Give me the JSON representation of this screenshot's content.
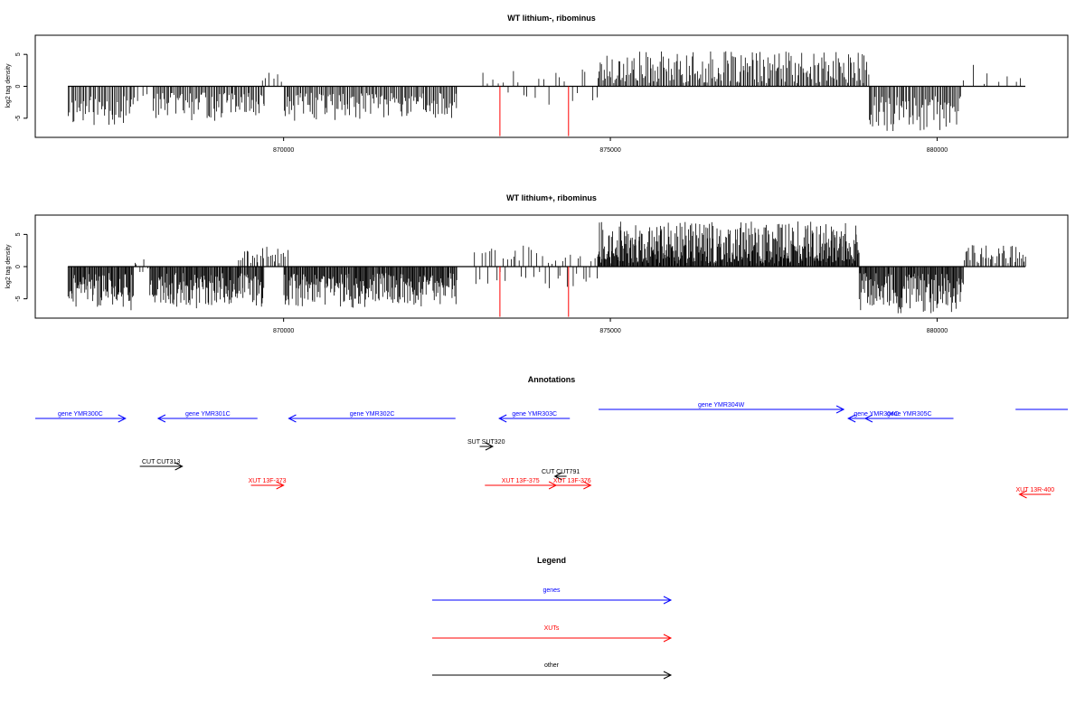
{
  "colors": {
    "gene": "#0000ff",
    "xut": "#ff0000",
    "other": "#000000",
    "marker": "#ff0000"
  },
  "chart_data": [
    {
      "type": "bar",
      "title": "WT lithium-, ribominus",
      "xlabel": "",
      "ylabel": "log2 tag density",
      "xlim": [
        866200,
        882000
      ],
      "ylim": [
        -8,
        8
      ],
      "xticks": [
        870000,
        875000,
        880000
      ],
      "xtick_labels": [
        "870000",
        "875000",
        "880000"
      ],
      "yticks": [
        -5,
        0,
        5
      ],
      "ytick_labels": [
        "-5",
        "0",
        "5"
      ],
      "baseline_x": [
        866700,
        881350
      ],
      "markers": [
        {
          "x": 873310,
          "y": -7.8
        },
        {
          "x": 874360,
          "y": -7.8
        }
      ],
      "segments": [
        {
          "x0": 866700,
          "x1": 867700,
          "step": 22,
          "min": -6.5,
          "max": -1.5,
          "seed": 11
        },
        {
          "x0": 867700,
          "x1": 867900,
          "step": 60,
          "min": -2.5,
          "max": -0.5,
          "seed": 12
        },
        {
          "x0": 868000,
          "x1": 869700,
          "step": 20,
          "min": -5.5,
          "max": -1.0,
          "seed": 13
        },
        {
          "x0": 869650,
          "x1": 869990,
          "step": 60,
          "min": 0.5,
          "max": 3.0,
          "seed": 14
        },
        {
          "x0": 870000,
          "x1": 872650,
          "step": 20,
          "min": -5.5,
          "max": -1.0,
          "seed": 15
        },
        {
          "x0": 873000,
          "x1": 874800,
          "step": 80,
          "min": -3.0,
          "max": 2.5,
          "seed": 16
        },
        {
          "x0": 874800,
          "x1": 878950,
          "step": 20,
          "min": 0.5,
          "max": 5.5,
          "seed": 17
        },
        {
          "x0": 878950,
          "x1": 880350,
          "step": 20,
          "min": -7.5,
          "max": -1.5,
          "seed": 18
        },
        {
          "x0": 880400,
          "x1": 881350,
          "step": 120,
          "min": 0.3,
          "max": 4.2,
          "seed": 19
        }
      ]
    },
    {
      "type": "bar",
      "title": "WT lithium+, ribominus",
      "xlabel": "",
      "ylabel": "log2 tag density",
      "xlim": [
        866200,
        882000
      ],
      "ylim": [
        -8,
        8
      ],
      "xticks": [
        870000,
        875000,
        880000
      ],
      "xtick_labels": [
        "870000",
        "875000",
        "880000"
      ],
      "yticks": [
        -5,
        0,
        5
      ],
      "ytick_labels": [
        "-5",
        "0",
        "5"
      ],
      "baseline_x": [
        866700,
        881350
      ],
      "markers": [
        {
          "x": 873310,
          "y": -7.8
        },
        {
          "x": 874360,
          "y": -7.8
        }
      ],
      "segments": [
        {
          "x0": 866700,
          "x1": 867700,
          "step": 12,
          "min": -6.8,
          "max": -1.0,
          "seed": 21
        },
        {
          "x0": 867700,
          "x1": 867950,
          "step": 40,
          "min": -1.0,
          "max": 1.0,
          "seed": 22
        },
        {
          "x0": 867950,
          "x1": 869700,
          "step": 12,
          "min": -6.5,
          "max": -1.0,
          "seed": 23
        },
        {
          "x0": 869300,
          "x1": 870050,
          "step": 30,
          "min": 0.5,
          "max": 3.5,
          "seed": 24
        },
        {
          "x0": 870000,
          "x1": 872650,
          "step": 12,
          "min": -6.5,
          "max": -1.0,
          "seed": 25
        },
        {
          "x0": 872900,
          "x1": 874800,
          "step": 40,
          "min": -3.5,
          "max": 3.0,
          "seed": 26
        },
        {
          "x0": 874800,
          "x1": 878800,
          "step": 10,
          "min": 0.5,
          "max": 7.0,
          "seed": 27
        },
        {
          "x0": 878800,
          "x1": 880400,
          "step": 12,
          "min": -7.5,
          "max": -1.0,
          "seed": 28
        },
        {
          "x0": 880400,
          "x1": 881350,
          "step": 25,
          "min": 0.5,
          "max": 3.5,
          "seed": 29
        }
      ]
    },
    {
      "type": "annotation-track",
      "title": "Annotations",
      "xlim": [
        866200,
        882000
      ],
      "features": [
        {
          "label": "gene YMR300C",
          "kind": "gene",
          "strand": "+",
          "x0": 866200,
          "x1": 867580,
          "row": 1
        },
        {
          "label": "gene YMR301C",
          "kind": "gene",
          "strand": "-",
          "x0": 868080,
          "x1": 869600,
          "row": 1
        },
        {
          "label": "gene YMR302C",
          "kind": "gene",
          "strand": "-",
          "x0": 870080,
          "x1": 872630,
          "row": 1
        },
        {
          "label": "gene YMR303C",
          "kind": "gene",
          "strand": "-",
          "x0": 873300,
          "x1": 874380,
          "row": 1
        },
        {
          "label": "gene YMR304W",
          "kind": "gene",
          "strand": "+",
          "x0": 874820,
          "x1": 878570,
          "row": 0
        },
        {
          "label": "gene YMR304C",
          "kind": "gene",
          "strand": "-",
          "x0": 878640,
          "x1": 879500,
          "row": 1
        },
        {
          "label": "gene YMR305C",
          "kind": "gene",
          "strand": "-",
          "x0": 878900,
          "x1": 880250,
          "row": 1
        },
        {
          "label": "",
          "kind": "gene",
          "strand": "+",
          "x0": 881200,
          "x1": 882000,
          "row": 0
        },
        {
          "label": "SUT SUT320",
          "kind": "other",
          "strand": "+",
          "x0": 873000,
          "x1": 873200,
          "row": 3
        },
        {
          "label": "CUT CUT313",
          "kind": "other",
          "strand": "+",
          "x0": 867800,
          "x1": 868450,
          "row": 4
        },
        {
          "label": "CUT CUT791",
          "kind": "other",
          "strand": "-",
          "x0": 874150,
          "x1": 874330,
          "row": 5
        },
        {
          "label": "XUT 13F-373",
          "kind": "xut",
          "strand": "+",
          "x0": 869500,
          "x1": 870000,
          "row": 6
        },
        {
          "label": "XUT 13F-375",
          "kind": "xut",
          "strand": "+",
          "x0": 873080,
          "x1": 874170,
          "row": 6
        },
        {
          "label": "XUT 13F-376",
          "kind": "xut",
          "strand": "+",
          "x0": 874130,
          "x1": 874700,
          "row": 6
        },
        {
          "label": "XUT 13R-400",
          "kind": "xut",
          "strand": "-",
          "x0": 881260,
          "x1": 881740,
          "row": 7
        }
      ]
    },
    {
      "type": "legend",
      "title": "Legend",
      "entries": [
        {
          "label": "genes",
          "kind": "gene"
        },
        {
          "label": "XUTs",
          "kind": "xut"
        },
        {
          "label": "other",
          "kind": "other"
        }
      ]
    }
  ]
}
